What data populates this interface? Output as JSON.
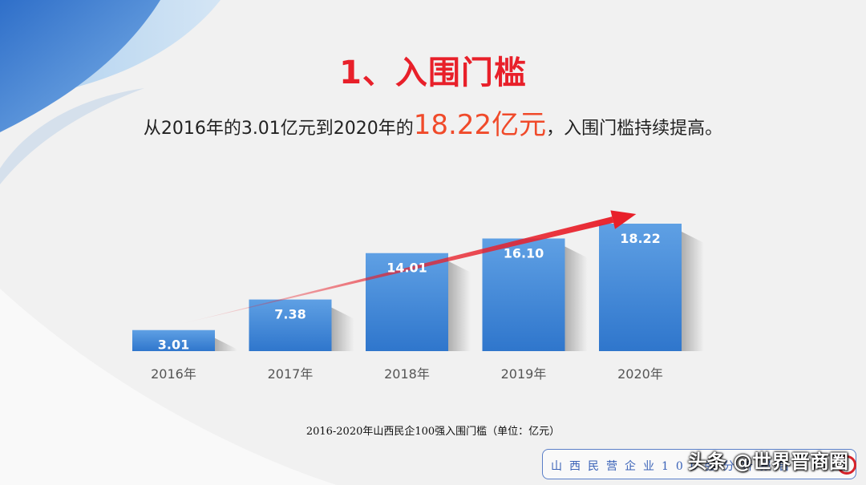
{
  "slide": {
    "title": "1、入围门槛",
    "subtitle_prefix": "从2016年的3.01亿元到2020年的",
    "subtitle_highlight": "18.22亿元",
    "subtitle_suffix": "，入围门槛持续提高。",
    "caption": "2016-2020年山西民企100强入围门槛（单位：亿元）",
    "footer_text": "山西民营企业100强分析报告",
    "watermark": "头条 @世界晋商圈"
  },
  "colors": {
    "title": "#e8202a",
    "highlight": "#f04a2a",
    "bar": "#3f86d6",
    "arrow": "#e8202a"
  },
  "chart_data": {
    "type": "bar",
    "categories": [
      "2016年",
      "2017年",
      "2018年",
      "2019年",
      "2020年"
    ],
    "values": [
      3.01,
      7.38,
      14.01,
      16.1,
      18.22
    ],
    "value_labels": [
      "3.01",
      "7.38",
      "14.01",
      "16.10",
      "18.22"
    ],
    "ylim": [
      0,
      18.22
    ],
    "grid": false,
    "legend": "none",
    "annotations": [
      "trend arrow rising from 2016年 to 2020年"
    ]
  }
}
